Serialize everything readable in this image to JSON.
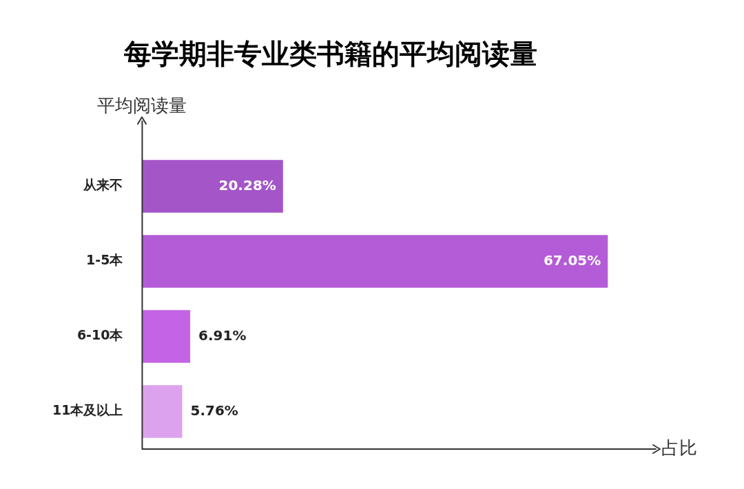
{
  "chart_data": {
    "type": "bar",
    "orientation": "horizontal",
    "title": "每学期非专业类书籍的平均阅读量",
    "ylabel": "平均阅读量",
    "xlabel": "占比",
    "categories": [
      "从来不",
      "1-5本",
      "6-10本",
      "11本及以上"
    ],
    "values": [
      20.28,
      67.05,
      6.91,
      5.76
    ],
    "value_labels": [
      "20.28%",
      "67.05%",
      "6.91%",
      "5.76%"
    ],
    "colors": [
      "#a456c9",
      "#b45cd8",
      "#c463e6",
      "#dda2ee"
    ],
    "grid": false,
    "legend": false
  }
}
